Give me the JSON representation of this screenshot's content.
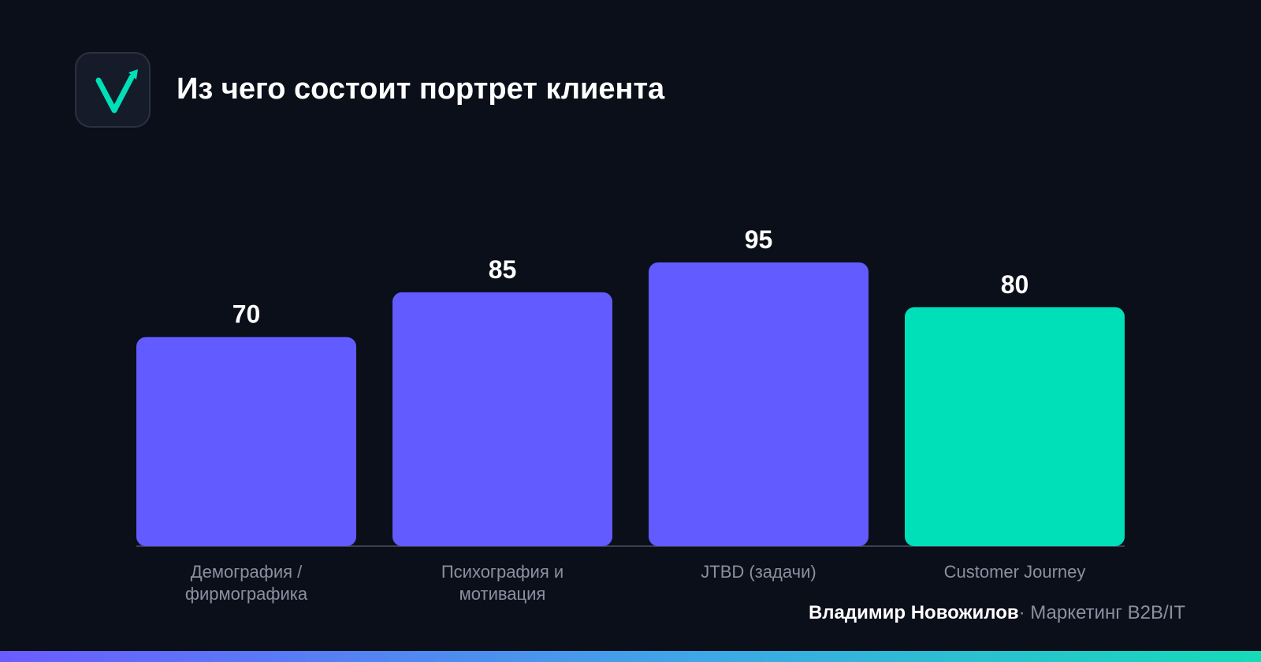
{
  "header": {
    "title": "Из чего состоит портрет клиента",
    "logo_icon": "checkmark-arrow-icon"
  },
  "chart_data": {
    "type": "bar",
    "title": "Из чего состоит портрет клиента",
    "categories": [
      [
        "Демография /",
        "фирмографика"
      ],
      [
        "Психография и",
        "мотивация"
      ],
      [
        "JTBD (задачи)"
      ],
      [
        "Customer Journey"
      ]
    ],
    "values": [
      70,
      85,
      95,
      80
    ],
    "colors": [
      "#625bff",
      "#625bff",
      "#625bff",
      "#00e0b8"
    ],
    "ylim": [
      0,
      100
    ],
    "grid": false,
    "legend": "none",
    "xlabel": "",
    "ylabel": ""
  },
  "footer": {
    "author": "Владимир Новожилов",
    "separator": "·",
    "role": "Маркетинг B2B/IT"
  },
  "colors": {
    "background": "#0b0f19",
    "accent_primary": "#625bff",
    "accent_highlight": "#00e0b8",
    "muted_text": "#8a90a0"
  }
}
